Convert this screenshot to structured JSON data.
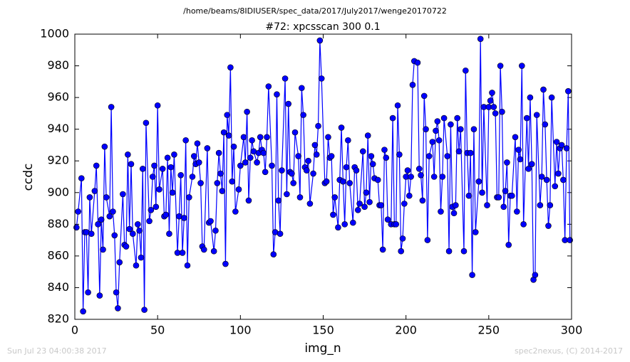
{
  "chart_data": {
    "type": "line",
    "suptitle": "/home/beams/8IDIUSER/spec_data/2017/July2017/wenge20170722",
    "title": "#72: xpcsscan 300 0.1",
    "xlabel": "img_n",
    "ylabel": "ccdc",
    "footer_left": "Sun Jul 23 04:00:38 2017",
    "footer_right": "spec2nexus, (C) 2014-2017",
    "color": "#0000ff",
    "xlim": [
      0,
      300
    ],
    "xticks": [
      0,
      50,
      100,
      150,
      200,
      250,
      300
    ],
    "ylim": [
      820,
      1000
    ],
    "yticks": [
      820,
      840,
      860,
      880,
      900,
      920,
      940,
      960,
      980,
      1000
    ],
    "x": [
      1,
      2,
      4,
      5,
      6,
      7,
      8,
      9,
      10,
      12,
      13,
      14,
      15,
      16,
      17,
      18,
      19,
      21,
      22,
      23,
      24,
      25,
      26,
      27,
      29,
      30,
      31,
      32,
      33,
      34,
      35,
      37,
      38,
      39,
      40,
      41,
      42,
      43,
      45,
      46,
      47,
      48,
      49,
      50,
      51,
      53,
      54,
      55,
      56,
      57,
      58,
      59,
      60,
      62,
      63,
      64,
      65,
      66,
      67,
      68,
      69,
      71,
      72,
      73,
      74,
      75,
      76,
      77,
      78,
      80,
      81,
      82,
      84,
      85,
      86,
      87,
      88,
      89,
      90,
      91,
      92,
      93,
      94,
      95,
      96,
      97,
      99,
      100,
      102,
      103,
      104,
      105,
      106,
      107,
      108,
      110,
      111,
      112,
      113,
      114,
      115,
      116,
      117,
      119,
      120,
      121,
      122,
      123,
      124,
      125,
      127,
      128,
      129,
      130,
      131,
      132,
      133,
      135,
      136,
      137,
      138,
      139,
      140,
      141,
      142,
      144,
      145,
      146,
      147,
      148,
      149,
      151,
      152,
      153,
      154,
      155,
      156,
      157,
      159,
      160,
      161,
      162,
      163,
      164,
      165,
      166,
      168,
      169,
      170,
      171,
      172,
      174,
      175,
      176,
      177,
      178,
      179,
      180,
      181,
      183,
      184,
      185,
      186,
      187,
      188,
      189,
      191,
      192,
      193,
      194,
      195,
      196,
      197,
      198,
      199,
      200,
      201,
      202,
      203,
      204,
      205,
      207,
      208,
      209,
      210,
      211,
      212,
      213,
      214,
      216,
      217,
      218,
      219,
      220,
      221,
      222,
      223,
      225,
      226,
      227,
      228,
      229,
      230,
      231,
      232,
      233,
      235,
      236,
      237,
      238,
      239,
      240,
      241,
      242,
      244,
      245,
      246,
      247,
      249,
      250,
      251,
      252,
      253,
      254,
      255,
      256,
      257,
      258,
      259,
      260,
      261,
      262,
      263,
      264,
      266,
      267,
      268,
      269,
      270,
      271,
      273,
      274,
      275,
      276,
      277,
      278,
      279,
      281,
      282,
      283,
      284,
      285,
      286,
      287,
      288,
      290,
      291,
      292,
      293,
      294,
      295,
      296,
      297,
      298,
      299
    ],
    "values": [
      878,
      888,
      909,
      825,
      875,
      875,
      837,
      897,
      874,
      901,
      917,
      880,
      835,
      883,
      864,
      929,
      897,
      885,
      954,
      888,
      873,
      837,
      827,
      856,
      899,
      867,
      866,
      924,
      877,
      918,
      874,
      854,
      880,
      876,
      859,
      915,
      826,
      944,
      882,
      889,
      910,
      917,
      891,
      955,
      902,
      915,
      885,
      886,
      922,
      874,
      916,
      900,
      924,
      862,
      885,
      911,
      862,
      884,
      933,
      854,
      897,
      910,
      923,
      918,
      931,
      919,
      906,
      866,
      864,
      928,
      881,
      882,
      863,
      876,
      906,
      925,
      912,
      901,
      938,
      855,
      949,
      936,
      979,
      907,
      929,
      888,
      902,
      917,
      935,
      919,
      951,
      895,
      922,
      933,
      926,
      919,
      925,
      935,
      927,
      925,
      913,
      935,
      967,
      917,
      861,
      875,
      962,
      895,
      874,
      914,
      972,
      899,
      956,
      913,
      912,
      906,
      938,
      923,
      897,
      966,
      949,
      916,
      914,
      920,
      893,
      912,
      930,
      924,
      942,
      996,
      972,
      906,
      907,
      935,
      922,
      923,
      886,
      897,
      878,
      908,
      941,
      907,
      880,
      916,
      933,
      906,
      881,
      916,
      914,
      889,
      893,
      926,
      891,
      900,
      936,
      894,
      923,
      918,
      909,
      908,
      892,
      892,
      864,
      927,
      922,
      883,
      880,
      947,
      880,
      880,
      955,
      924,
      863,
      871,
      893,
      910,
      914,
      898,
      910,
      968,
      983,
      982,
      915,
      911,
      895,
      961,
      940,
      870,
      923,
      932,
      910,
      939,
      945,
      933,
      888,
      910,
      947,
      923,
      863,
      943,
      891,
      887,
      892,
      947,
      926,
      940,
      863,
      977,
      925,
      898,
      925,
      848,
      940,
      875,
      907,
      997,
      900,
      954,
      892,
      954,
      958,
      963,
      954,
      950,
      897,
      897,
      980,
      951,
      891,
      901,
      919,
      867,
      898,
      898,
      935,
      888,
      927,
      921,
      980,
      880,
      947,
      915,
      960,
      918,
      845,
      848,
      949,
      892,
      910,
      965,
      943,
      908,
      879,
      892,
      960,
      904,
      932,
      912,
      928,
      930,
      908,
      870,
      928,
      964,
      870
    ]
  }
}
